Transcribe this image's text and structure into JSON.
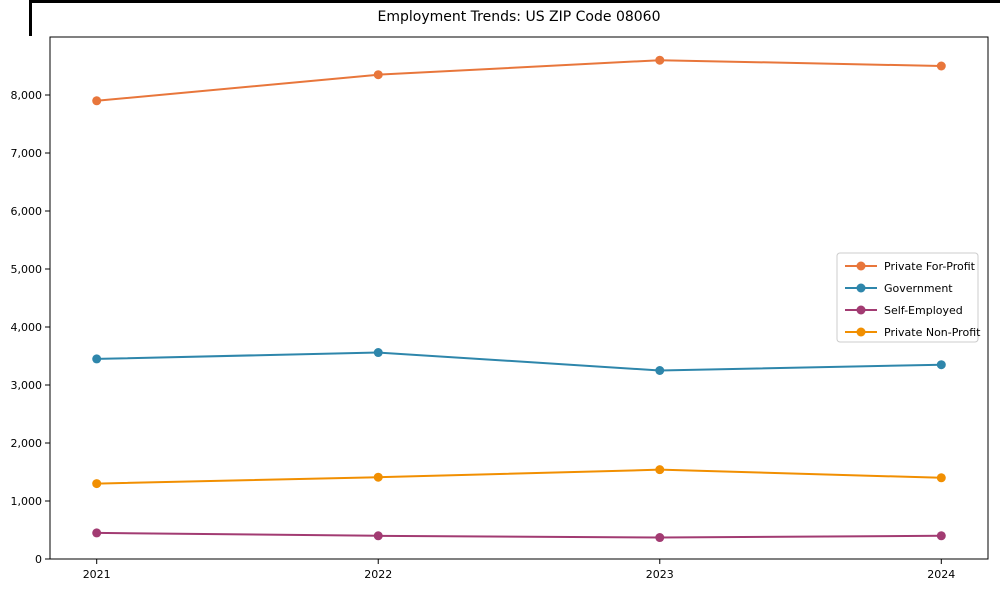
{
  "chart_data": {
    "type": "line",
    "title": "Employment Trends: US ZIP Code 08060",
    "xlabel": "",
    "ylabel": "",
    "x": [
      2021,
      2022,
      2023,
      2024
    ],
    "x_tick_labels": [
      "2021",
      "2022",
      "2023",
      "2024"
    ],
    "ylim": [
      0,
      9000
    ],
    "yticks": [
      0,
      1000,
      2000,
      3000,
      4000,
      5000,
      6000,
      7000,
      8000
    ],
    "ytick_labels": [
      "0",
      "1,000",
      "2,000",
      "3,000",
      "4,000",
      "5,000",
      "6,000",
      "7,000",
      "8,000"
    ],
    "grid": false,
    "marker": "circle",
    "legend_position": "center right",
    "series": [
      {
        "name": "Private For-Profit",
        "color": "#E8763B",
        "values": [
          7900,
          8350,
          8600,
          8500
        ]
      },
      {
        "name": "Government",
        "color": "#2E86AB",
        "values": [
          3450,
          3560,
          3250,
          3350
        ]
      },
      {
        "name": "Self-Employed",
        "color": "#A23B72",
        "values": [
          450,
          400,
          370,
          400
        ]
      },
      {
        "name": "Private Non-Profit",
        "color": "#F18F01",
        "values": [
          1300,
          1410,
          1540,
          1400
        ]
      }
    ]
  }
}
